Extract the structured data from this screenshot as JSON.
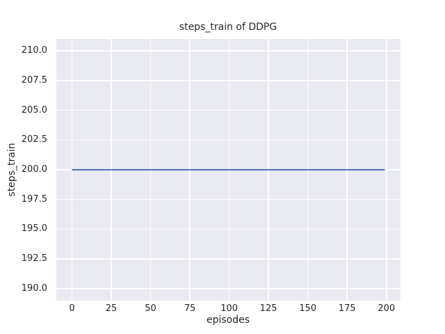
{
  "style": {
    "figure_background": "#ffffff",
    "plot_background": "#EAEAF2",
    "grid_color": "#ffffff",
    "text_color": "#262626",
    "line_color": "#4C72B0"
  },
  "chart_data": {
    "type": "line",
    "title": "steps_train of DDPG",
    "xlabel": "episodes",
    "ylabel": "steps_train",
    "grid": true,
    "legend": false,
    "xlim": [
      -9.95,
      208.95
    ],
    "ylim": [
      189.0,
      211.0
    ],
    "x_ticks": [
      0,
      25,
      50,
      75,
      100,
      125,
      150,
      175,
      200
    ],
    "x_tick_labels": [
      "0",
      "25",
      "50",
      "75",
      "100",
      "125",
      "150",
      "175",
      "200"
    ],
    "y_ticks": [
      190.0,
      192.5,
      195.0,
      197.5,
      200.0,
      202.5,
      205.0,
      207.5,
      210.0
    ],
    "y_tick_labels": [
      "190.0",
      "192.5",
      "195.0",
      "197.5",
      "200.0",
      "202.5",
      "205.0",
      "207.5",
      "210.0"
    ],
    "series": [
      {
        "name": "steps_train",
        "color": "#4C72B0",
        "points": [
          {
            "x": 0,
            "y": 200
          },
          {
            "x": 199,
            "y": 200
          }
        ]
      }
    ]
  }
}
